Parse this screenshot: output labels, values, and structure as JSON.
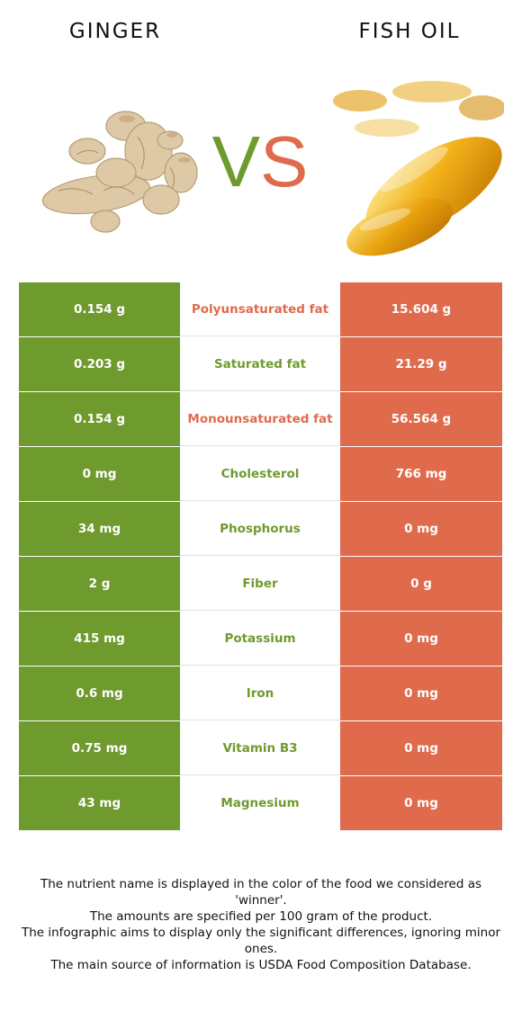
{
  "header": {
    "left_food": "GINGER",
    "right_food": "FISH OIL",
    "vs_v": "V",
    "vs_s": "S"
  },
  "colors": {
    "left_accent": "#6f9a2e",
    "right_accent": "#e06b4c"
  },
  "rows": [
    {
      "left": "0.154 g",
      "nutrient": "Polyunsaturated fat",
      "right": "15.604 g",
      "winner": "right"
    },
    {
      "left": "0.203 g",
      "nutrient": "Saturated fat",
      "right": "21.29 g",
      "winner": "left"
    },
    {
      "left": "0.154 g",
      "nutrient": "Monounsaturated fat",
      "right": "56.564 g",
      "winner": "right"
    },
    {
      "left": "0 mg",
      "nutrient": "Cholesterol",
      "right": "766 mg",
      "winner": "left"
    },
    {
      "left": "34 mg",
      "nutrient": "Phosphorus",
      "right": "0 mg",
      "winner": "left"
    },
    {
      "left": "2 g",
      "nutrient": "Fiber",
      "right": "0 g",
      "winner": "left"
    },
    {
      "left": "415 mg",
      "nutrient": "Potassium",
      "right": "0 mg",
      "winner": "left"
    },
    {
      "left": "0.6 mg",
      "nutrient": "Iron",
      "right": "0 mg",
      "winner": "left"
    },
    {
      "left": "0.75 mg",
      "nutrient": "Vitamin B3",
      "right": "0 mg",
      "winner": "left"
    },
    {
      "left": "43 mg",
      "nutrient": "Magnesium",
      "right": "0 mg",
      "winner": "left"
    }
  ],
  "footer": {
    "line1": "The nutrient name is displayed in the color of the food we considered as 'winner'.",
    "line2": "The amounts are specified per 100 gram of the product.",
    "line3": "The infographic aims to display only the significant differences, ignoring minor ones.",
    "line4": "The main source of information is USDA Food Composition Database."
  }
}
